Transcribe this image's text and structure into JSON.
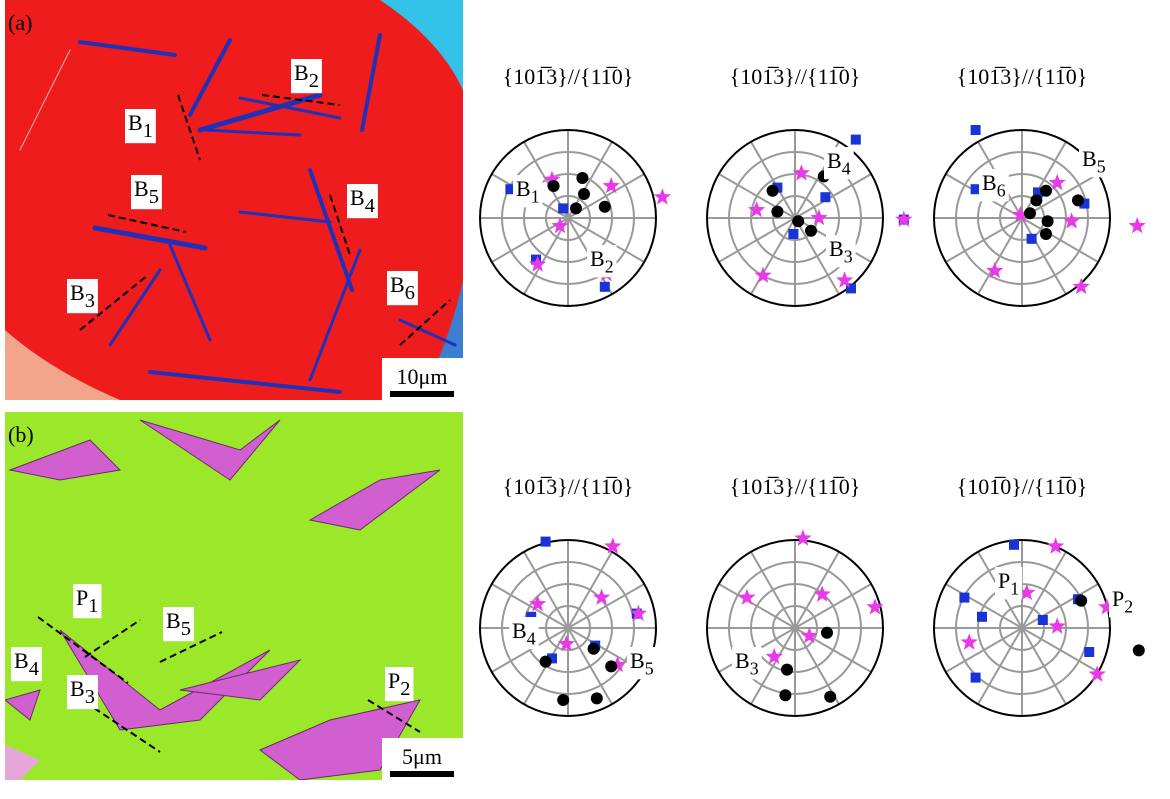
{
  "panels": [
    {
      "tag": "(a)",
      "image_labels": [
        {
          "letter": "B",
          "sub": "2"
        },
        {
          "letter": "B",
          "sub": "1"
        },
        {
          "letter": "B",
          "sub": "5"
        },
        {
          "letter": "B",
          "sub": "4"
        },
        {
          "letter": "B",
          "sub": "3"
        },
        {
          "letter": "B",
          "sub": "6"
        }
      ],
      "scale_bar": "10μm",
      "pole_figures": [
        {
          "title": "{101̅3}//{11̅0}",
          "labels": [
            {
              "letter": "B",
              "sub": "1"
            },
            {
              "letter": "B",
              "sub": "2"
            }
          ]
        },
        {
          "title": "{101̅3}//{11̅0}",
          "labels": [
            {
              "letter": "B",
              "sub": "4"
            },
            {
              "letter": "B",
              "sub": "3"
            }
          ]
        },
        {
          "title": "{101̅3}//{11̅0}",
          "labels": [
            {
              "letter": "B",
              "sub": "5"
            },
            {
              "letter": "B",
              "sub": "6"
            }
          ]
        }
      ]
    },
    {
      "tag": "(b)",
      "image_labels": [
        {
          "letter": "P",
          "sub": "1"
        },
        {
          "letter": "B",
          "sub": "5"
        },
        {
          "letter": "B",
          "sub": "4"
        },
        {
          "letter": "B",
          "sub": "3"
        },
        {
          "letter": "P",
          "sub": "2"
        }
      ],
      "scale_bar": "5μm",
      "pole_figures": [
        {
          "title": "{101̅3}//{11̅0}",
          "labels": [
            {
              "letter": "B",
              "sub": "4"
            },
            {
              "letter": "B",
              "sub": "5"
            }
          ]
        },
        {
          "title": "{101̅3}//{11̅0}",
          "labels": [
            {
              "letter": "B",
              "sub": "3"
            }
          ]
        },
        {
          "title": "{101̅0}//{11̅0}",
          "labels": [
            {
              "letter": "P",
              "sub": "1"
            },
            {
              "letter": "P",
              "sub": "2"
            }
          ]
        }
      ]
    }
  ]
}
